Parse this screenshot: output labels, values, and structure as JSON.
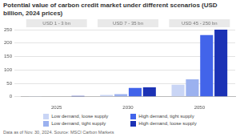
{
  "chart_data": {
    "type": "bar",
    "title": "Potential value of carbon credit market under different scenarios (USD billion, 2024 prices)",
    "categories": [
      "2025",
      "2030",
      "2050"
    ],
    "series": [
      {
        "name": "Low demand, loose supply",
        "color": "#c9d5f5",
        "values": [
          1,
          7,
          45
        ]
      },
      {
        "name": "Low demand, tight supply",
        "color": "#9bb1ef",
        "values": [
          2,
          10,
          65
        ]
      },
      {
        "name": "High demand, tight supply",
        "color": "#4264ea",
        "values": [
          2,
          33,
          230
        ]
      },
      {
        "name": "High demand, loose supply",
        "color": "#1c32b5",
        "values": [
          3,
          35,
          250
        ]
      }
    ],
    "annotations": [
      {
        "category": "2025",
        "text": "USD 1 - 3 bn"
      },
      {
        "category": "2030",
        "text": "USD 7 - 35 bn"
      },
      {
        "category": "2050",
        "text": "USD 45 - 250 bn"
      }
    ],
    "ylim": [
      0,
      250
    ],
    "yticks": [
      0,
      50,
      100,
      150,
      200,
      250
    ],
    "grid": true,
    "legend": "bottom",
    "source": "Data as of Nov. 30, 2024. Source: MSCI Carbon Markets"
  }
}
